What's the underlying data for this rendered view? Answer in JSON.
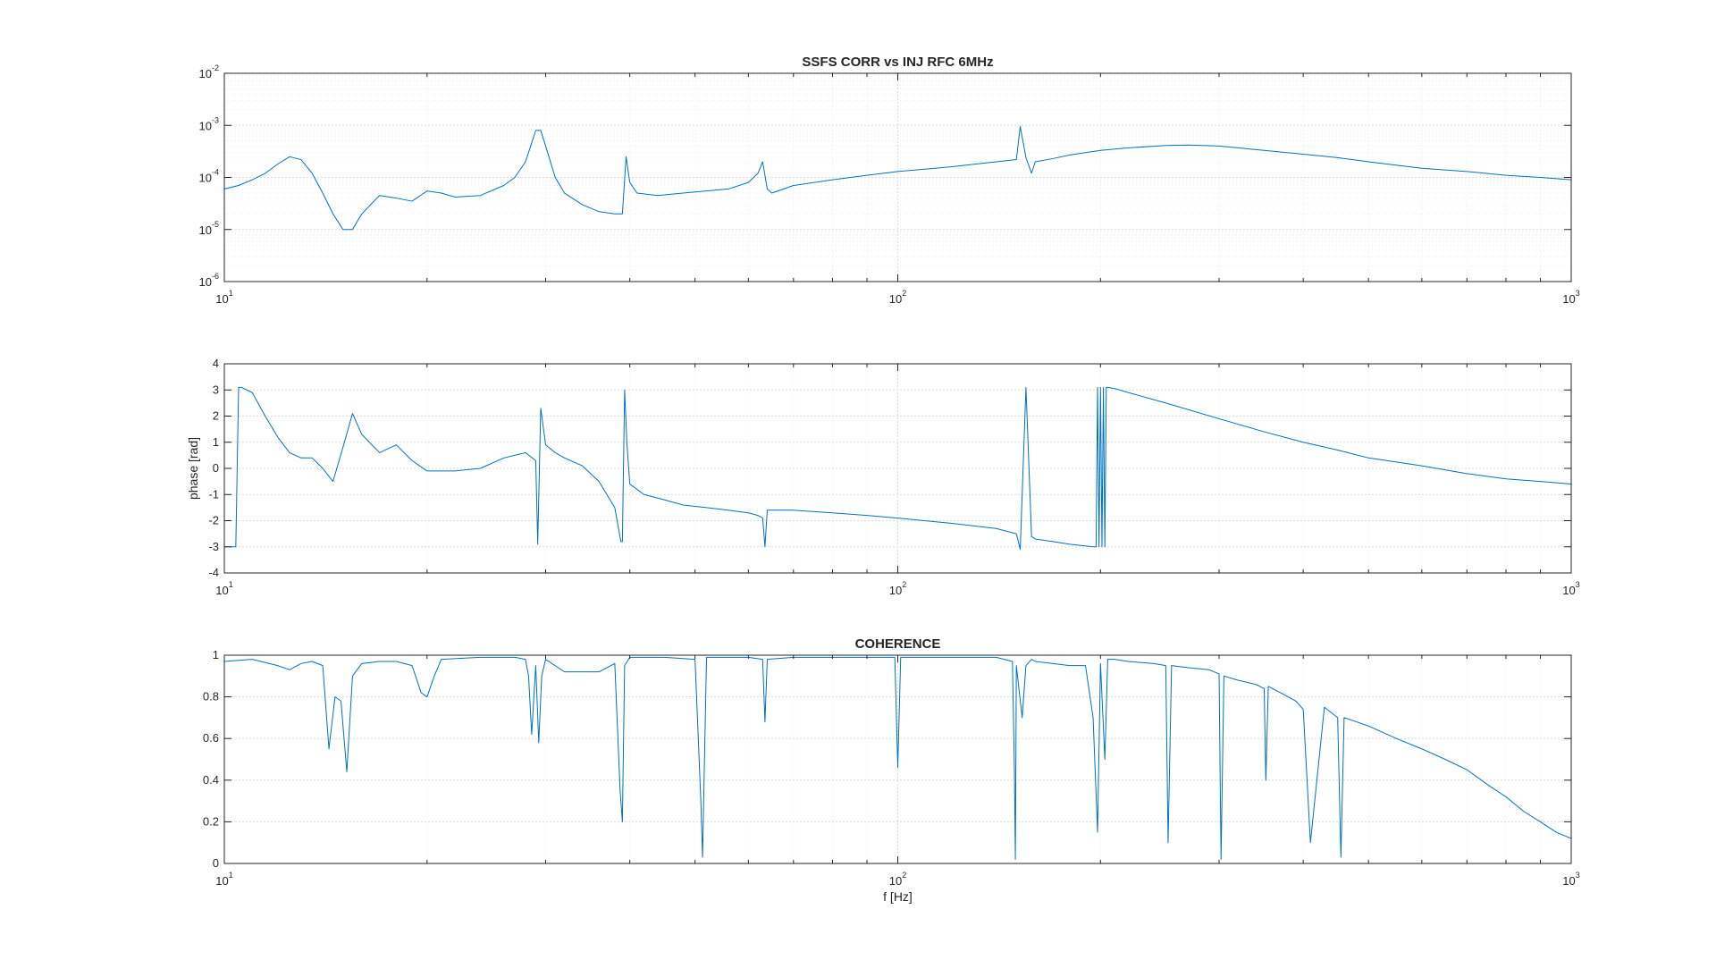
{
  "chart_data": [
    {
      "type": "line",
      "title": "SSFS CORR vs INJ RFC 6MHz",
      "xlabel": "",
      "ylabel": "",
      "x_scale": "log",
      "y_scale": "log",
      "xlim": [
        10,
        1000
      ],
      "ylim": [
        1e-06,
        0.01
      ],
      "grid": true,
      "x_ticks": [
        {
          "base": "10",
          "exp": "1"
        },
        {
          "base": "10",
          "exp": "2"
        },
        {
          "base": "10",
          "exp": "3"
        }
      ],
      "y_ticks": [
        {
          "base": "10",
          "exp": "-6"
        },
        {
          "base": "10",
          "exp": "-5"
        },
        {
          "base": "10",
          "exp": "-4"
        },
        {
          "base": "10",
          "exp": "-3"
        },
        {
          "base": "10",
          "exp": "-2"
        }
      ],
      "color": "#0072bd",
      "series": [
        {
          "x": [
            10,
            10.5,
            11,
            11.5,
            12,
            12.5,
            13,
            13.5,
            14,
            14.5,
            15,
            15.5,
            16,
            17,
            18,
            19,
            20,
            21,
            22,
            24,
            26,
            27,
            28,
            28.5,
            29,
            29.5,
            30,
            31,
            32,
            34,
            36,
            38,
            39,
            39.5,
            40,
            41,
            44,
            48,
            52,
            56,
            60,
            62,
            63,
            64,
            65,
            70,
            80,
            90,
            100,
            120,
            140,
            150,
            152,
            155,
            158,
            160,
            170,
            180,
            200,
            220,
            250,
            270,
            300,
            320,
            350,
            400,
            450,
            500,
            600,
            700,
            800,
            900,
            1000
          ],
          "y": [
            6e-05,
            7e-05,
            9e-05,
            0.00012,
            0.00018,
            0.00025,
            0.00022,
            0.00012,
            5e-05,
            2e-05,
            1e-05,
            1e-05,
            2e-05,
            4.5e-05,
            4e-05,
            3.5e-05,
            5.5e-05,
            5e-05,
            4.2e-05,
            4.5e-05,
            7e-05,
            0.0001,
            0.0002,
            0.0004,
            0.0008,
            0.0008,
            0.0004,
            0.0001,
            5e-05,
            3e-05,
            2.2e-05,
            2e-05,
            2e-05,
            0.00025,
            8e-05,
            5e-05,
            4.5e-05,
            5e-05,
            5.5e-05,
            6e-05,
            8e-05,
            0.00012,
            0.0002,
            6e-05,
            5e-05,
            7e-05,
            9e-05,
            0.00011,
            0.00013,
            0.00016,
            0.0002,
            0.00022,
            0.00095,
            0.00024,
            0.00012,
            0.0002,
            0.00023,
            0.00027,
            0.00033,
            0.00037,
            0.00041,
            0.00042,
            0.0004,
            0.00037,
            0.00033,
            0.00028,
            0.00024,
            0.0002,
            0.00015,
            0.00013,
            0.00011,
            0.0001,
            9e-05
          ]
        }
      ]
    },
    {
      "type": "line",
      "title": "",
      "xlabel": "",
      "ylabel": "phase [rad]",
      "x_scale": "log",
      "y_scale": "linear",
      "xlim": [
        10,
        1000
      ],
      "ylim": [
        -4,
        4
      ],
      "grid": true,
      "x_ticks": [
        {
          "base": "10",
          "exp": "1"
        },
        {
          "base": "10",
          "exp": "2"
        },
        {
          "base": "10",
          "exp": "3"
        }
      ],
      "y_ticks": [
        "-4",
        "-3",
        "-2",
        "-1",
        "0",
        "1",
        "2",
        "3",
        "4"
      ],
      "color": "#0072bd",
      "series": [
        {
          "x": [
            10,
            10.2,
            10.4,
            10.5,
            10.6,
            10.8,
            11,
            11.5,
            12,
            12.5,
            13,
            13.5,
            14,
            14.5,
            15,
            15.5,
            16,
            17,
            18,
            19,
            20,
            22,
            24,
            26,
            28,
            29,
            29.2,
            29.5,
            30,
            31,
            32,
            34,
            36,
            38,
            38.8,
            39,
            39.3,
            39.6,
            40,
            42,
            45,
            48,
            52,
            56,
            60,
            62,
            63,
            63.5,
            64,
            64.5,
            65,
            70,
            80,
            90,
            100,
            120,
            140,
            150,
            152,
            155,
            158,
            160,
            170,
            180,
            195,
            197,
            198,
            199,
            200,
            201,
            202,
            203,
            204,
            205,
            210,
            220,
            250,
            300,
            350,
            400,
            450,
            500,
            600,
            700,
            800,
            900,
            1000
          ],
          "y": [
            -3.0,
            -3.0,
            -3.0,
            3.1,
            3.1,
            3.0,
            2.9,
            2.0,
            1.2,
            0.6,
            0.4,
            0.4,
            0.0,
            -0.5,
            0.8,
            2.1,
            1.3,
            0.6,
            0.9,
            0.3,
            -0.1,
            -0.1,
            0.0,
            0.4,
            0.6,
            0.3,
            -2.9,
            2.3,
            0.9,
            0.6,
            0.4,
            0.1,
            -0.5,
            -1.5,
            -2.8,
            -2.8,
            3.0,
            1.0,
            -0.6,
            -1.0,
            -1.2,
            -1.4,
            -1.5,
            -1.6,
            -1.7,
            -1.8,
            -1.9,
            -3.0,
            -1.6,
            -1.6,
            -1.6,
            -1.6,
            -1.7,
            -1.8,
            -1.9,
            -2.1,
            -2.3,
            -2.5,
            -3.1,
            3.1,
            -2.6,
            -2.7,
            -2.8,
            -2.9,
            -3.0,
            -3.0,
            3.1,
            -3.0,
            3.1,
            -3.0,
            3.1,
            -3.0,
            3.1,
            3.1,
            3.05,
            2.9,
            2.5,
            1.9,
            1.4,
            1.0,
            0.7,
            0.4,
            0.1,
            -0.2,
            -0.4,
            -0.5,
            -0.6
          ]
        }
      ]
    },
    {
      "type": "line",
      "title": "COHERENCE",
      "xlabel": "f [Hz]",
      "ylabel": "",
      "x_scale": "log",
      "y_scale": "linear",
      "xlim": [
        10,
        1000
      ],
      "ylim": [
        0,
        1
      ],
      "grid": true,
      "x_ticks": [
        {
          "base": "10",
          "exp": "1"
        },
        {
          "base": "10",
          "exp": "2"
        },
        {
          "base": "10",
          "exp": "3"
        }
      ],
      "y_ticks": [
        "0",
        "0.2",
        "0.4",
        "0.6",
        "0.8",
        "1"
      ],
      "color": "#0072bd",
      "series": [
        {
          "x": [
            10,
            11,
            12,
            12.5,
            13,
            13.5,
            14,
            14.3,
            14.6,
            14.9,
            15.2,
            15.5,
            16,
            17,
            18,
            19,
            19.6,
            20,
            20.5,
            21,
            24,
            27,
            28,
            28.3,
            28.6,
            29,
            29.3,
            29.6,
            30,
            32,
            34,
            36,
            38,
            38.7,
            39,
            39.3,
            40,
            45,
            50,
            51,
            51.3,
            52,
            60,
            63,
            63.5,
            64,
            70,
            90,
            99,
            100,
            101,
            110,
            140,
            148,
            149,
            149.5,
            150,
            153,
            155,
            158,
            160,
            170,
            180,
            190,
            195,
            198,
            200,
            203,
            205,
            210,
            220,
            240,
            250,
            252,
            255,
            270,
            290,
            300,
            302,
            305,
            320,
            340,
            350,
            352,
            355,
            370,
            390,
            400,
            410,
            430,
            450,
            455,
            460,
            480,
            500,
            550,
            600,
            650,
            700,
            750,
            800,
            850,
            900,
            950,
            1000
          ],
          "y": [
            0.97,
            0.98,
            0.95,
            0.93,
            0.96,
            0.97,
            0.95,
            0.55,
            0.8,
            0.78,
            0.44,
            0.9,
            0.96,
            0.97,
            0.97,
            0.95,
            0.82,
            0.8,
            0.9,
            0.98,
            0.99,
            0.99,
            0.98,
            0.9,
            0.62,
            0.95,
            0.58,
            0.9,
            0.98,
            0.92,
            0.92,
            0.92,
            0.96,
            0.35,
            0.2,
            0.95,
            0.99,
            0.99,
            0.98,
            0.3,
            0.03,
            0.99,
            0.99,
            0.98,
            0.68,
            0.98,
            0.99,
            0.99,
            0.99,
            0.46,
            0.99,
            0.99,
            0.99,
            0.97,
            0.45,
            0.02,
            0.95,
            0.7,
            0.95,
            0.98,
            0.97,
            0.96,
            0.95,
            0.95,
            0.7,
            0.15,
            0.96,
            0.5,
            0.98,
            0.98,
            0.97,
            0.96,
            0.95,
            0.1,
            0.95,
            0.94,
            0.93,
            0.91,
            0.02,
            0.9,
            0.88,
            0.86,
            0.84,
            0.4,
            0.85,
            0.82,
            0.78,
            0.74,
            0.1,
            0.75,
            0.7,
            0.03,
            0.7,
            0.68,
            0.66,
            0.6,
            0.55,
            0.5,
            0.45,
            0.38,
            0.32,
            0.25,
            0.2,
            0.15,
            0.12
          ]
        }
      ]
    }
  ]
}
